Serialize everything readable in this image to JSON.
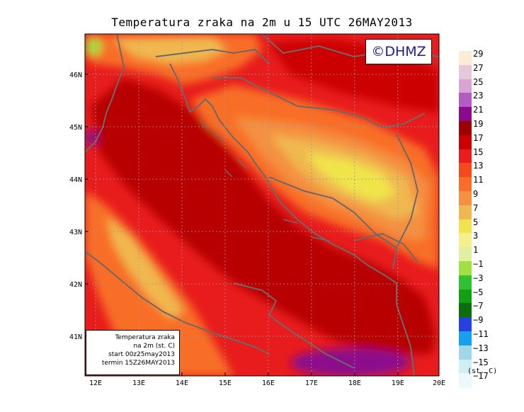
{
  "title": "Temperatura zraka na 2m u 15 UTC 26MAY2013",
  "copyright": "©DHMZ",
  "info_box": {
    "line1": "Temperatura zraka",
    "line2": "na 2m (st. C)",
    "line3": "start 00z25may2013",
    "line4": "termin 15Z26MAY2013"
  },
  "axes": {
    "x_ticks": [
      "12E",
      "13E",
      "14E",
      "15E",
      "16E",
      "17E",
      "18E",
      "19E",
      "20E"
    ],
    "y_ticks": [
      "46N",
      "45N",
      "44N",
      "43N",
      "42N",
      "41N"
    ]
  },
  "legend": {
    "unit": "(st. C)",
    "items": [
      {
        "label": "29",
        "color": "#fdebd8"
      },
      {
        "label": "27",
        "color": "#e6c8dc"
      },
      {
        "label": "25",
        "color": "#d9a4d4"
      },
      {
        "label": "23",
        "color": "#b45cc4"
      },
      {
        "label": "21",
        "color": "#8c0a8c"
      },
      {
        "label": "19",
        "color": "#9c0000"
      },
      {
        "label": "17",
        "color": "#cc0000"
      },
      {
        "label": "15",
        "color": "#ec1c1c"
      },
      {
        "label": "13",
        "color": "#f44a1c"
      },
      {
        "label": "11",
        "color": "#f86e28"
      },
      {
        "label": "9",
        "color": "#f49040"
      },
      {
        "label": "7",
        "color": "#f0b850"
      },
      {
        "label": "5",
        "color": "#f0e44c"
      },
      {
        "label": "3",
        "color": "#f4f08c"
      },
      {
        "label": "1",
        "color": "#e0f0a0"
      },
      {
        "label": "−1",
        "color": "#a0e040"
      },
      {
        "label": "−3",
        "color": "#30c030"
      },
      {
        "label": "−5",
        "color": "#10a010"
      },
      {
        "label": "−7",
        "color": "#0b6e0b"
      },
      {
        "label": "−9",
        "color": "#2840e0"
      },
      {
        "label": "−11",
        "color": "#18a0f0"
      },
      {
        "label": "−13",
        "color": "#a0d8e8"
      },
      {
        "label": "−15",
        "color": "#d0eef4"
      },
      {
        "label": "−17",
        "color": "#ecf8fa"
      }
    ]
  },
  "colors": {
    "sea": "#c00000",
    "hot": "#e81c1c",
    "warm": "#f86e28",
    "mild": "#f49040",
    "cool": "#f0b850",
    "cold": "#f0e44c",
    "purple": "#8c0a8c",
    "green": "#a0e040",
    "coast": "#6a6a6a"
  }
}
